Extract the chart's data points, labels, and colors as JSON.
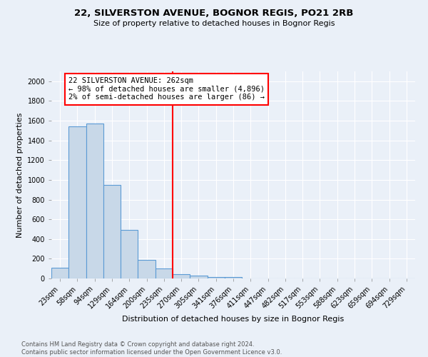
{
  "title": "22, SILVERSTON AVENUE, BOGNOR REGIS, PO21 2RB",
  "subtitle": "Size of property relative to detached houses in Bognor Regis",
  "xlabel": "Distribution of detached houses by size in Bognor Regis",
  "ylabel": "Number of detached properties",
  "footnote": "Contains HM Land Registry data © Crown copyright and database right 2024.\nContains public sector information licensed under the Open Government Licence v3.0.",
  "bin_labels": [
    "23sqm",
    "58sqm",
    "94sqm",
    "129sqm",
    "164sqm",
    "200sqm",
    "235sqm",
    "270sqm",
    "305sqm",
    "341sqm",
    "376sqm",
    "411sqm",
    "447sqm",
    "482sqm",
    "517sqm",
    "553sqm",
    "588sqm",
    "623sqm",
    "659sqm",
    "694sqm",
    "729sqm"
  ],
  "bar_heights": [
    110,
    1540,
    1570,
    950,
    490,
    190,
    100,
    40,
    28,
    18,
    18,
    0,
    0,
    0,
    0,
    0,
    0,
    0,
    0,
    0,
    0
  ],
  "bar_color": "#c8d8e8",
  "bar_edge_color": "#5b9bd5",
  "vline_x_index": 7,
  "vline_color": "red",
  "annotation_text": "22 SILVERSTON AVENUE: 262sqm\n← 98% of detached houses are smaller (4,896)\n2% of semi-detached houses are larger (86) →",
  "annotation_box_color": "white",
  "annotation_box_edge": "red",
  "ylim": [
    0,
    2100
  ],
  "yticks": [
    0,
    200,
    400,
    600,
    800,
    1000,
    1200,
    1400,
    1600,
    1800,
    2000
  ],
  "background_color": "#eaf0f8",
  "grid_color": "#ffffff",
  "title_fontsize": 9.5,
  "subtitle_fontsize": 8,
  "tick_fontsize": 7,
  "ylabel_fontsize": 8,
  "xlabel_fontsize": 8,
  "footnote_fontsize": 6
}
